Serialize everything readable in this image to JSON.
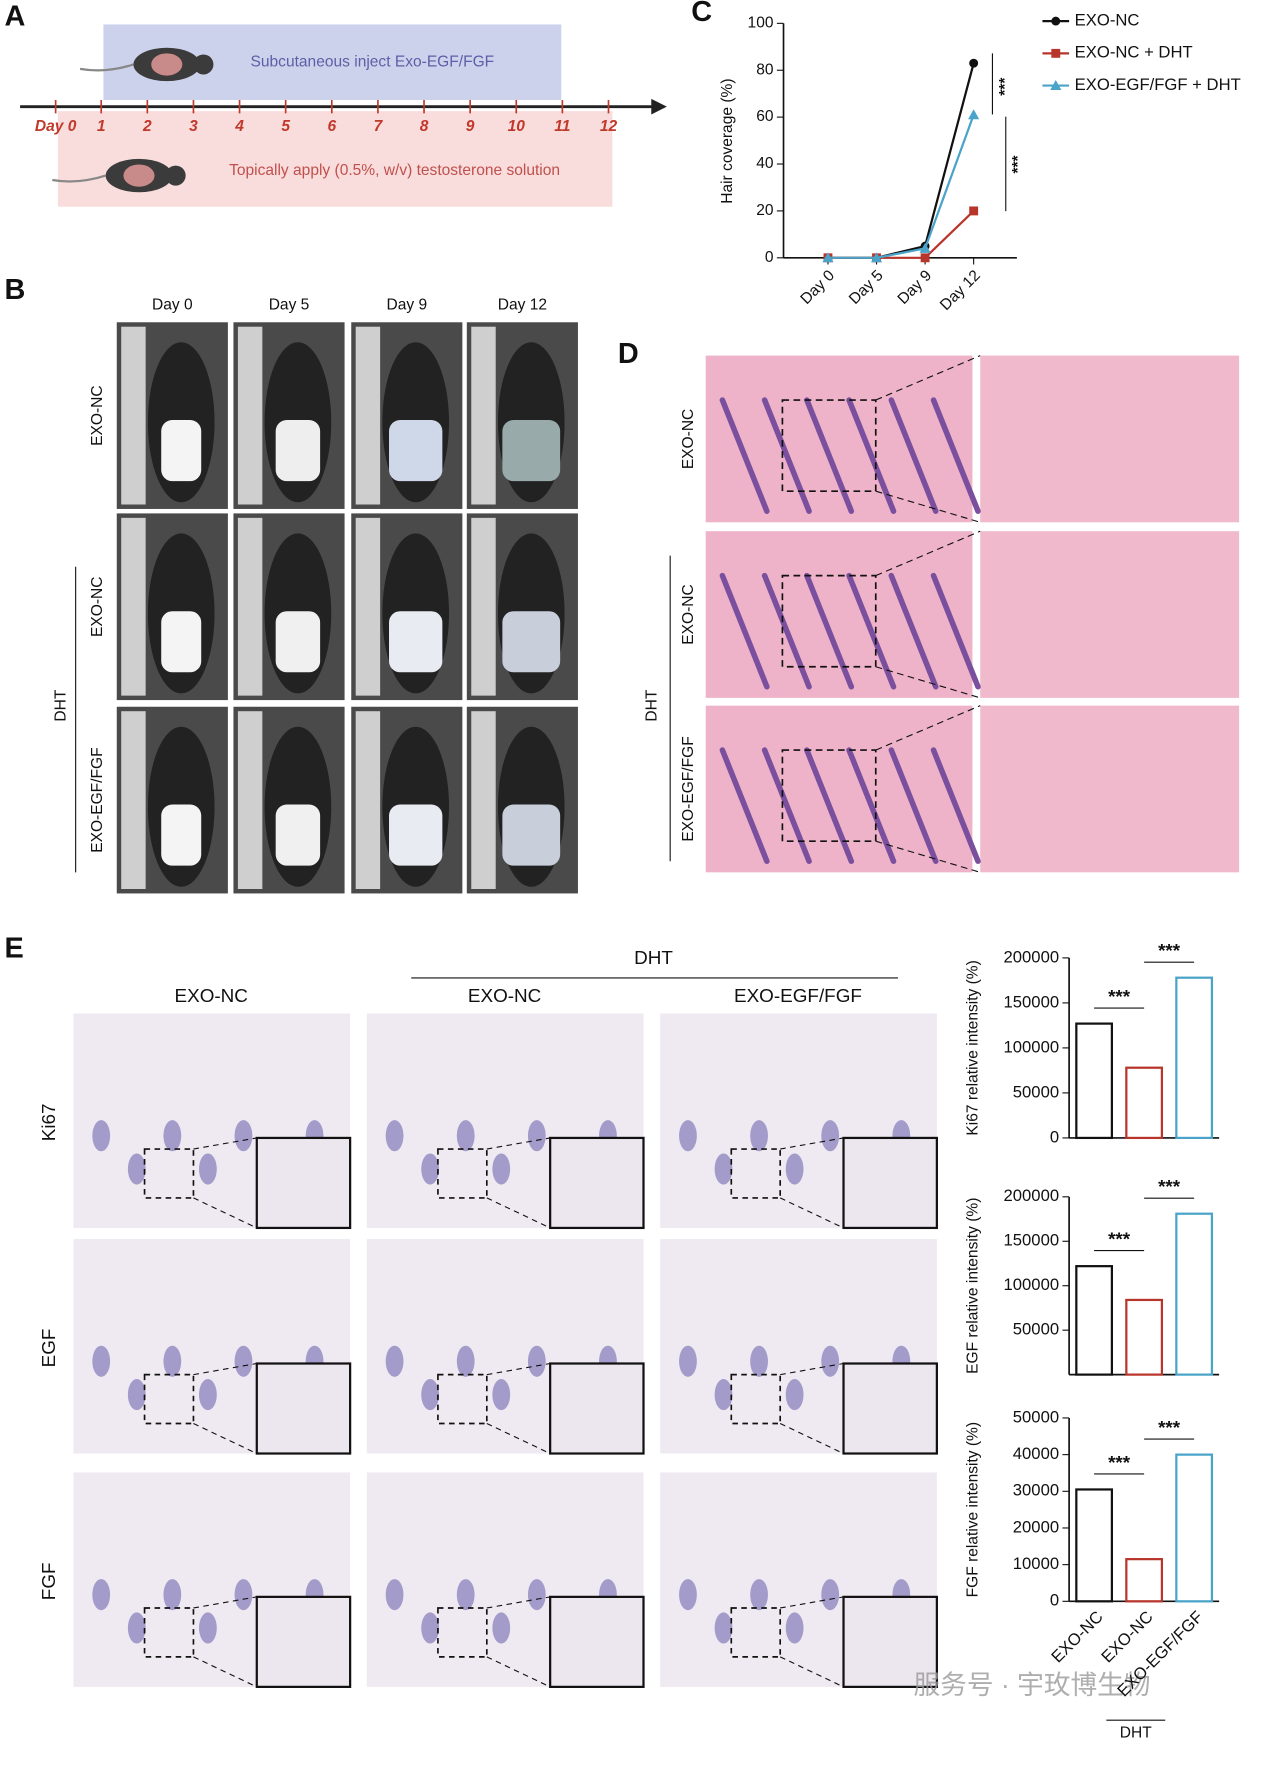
{
  "panel_a": {
    "label": "A",
    "top_text": "Subcutaneous inject Exo-EGF/FGF",
    "bottom_text": "Topically apply (0.5%, w/v) testosterone solution",
    "timeline": [
      "Day 0",
      "1",
      "2",
      "3",
      "4",
      "5",
      "6",
      "7",
      "8",
      "9",
      "10",
      "11",
      "12"
    ]
  },
  "panel_b": {
    "label": "B",
    "columns": [
      "Day 0",
      "Day 5",
      "Day 9",
      "Day 12"
    ],
    "rows": [
      "EXO-NC",
      "EXO-NC",
      "EXO-EGF/FGF"
    ],
    "group": "DHT"
  },
  "panel_d": {
    "label": "D",
    "rows": [
      "EXO-NC",
      "EXO-NC",
      "EXO-EGF/FGF"
    ],
    "group": "DHT"
  },
  "panel_e": {
    "label": "E",
    "columns": [
      "EXO-NC",
      "EXO-NC",
      "EXO-EGF/FGF"
    ],
    "group": "DHT",
    "rows": [
      "Ki67",
      "EGF",
      "FGF"
    ]
  },
  "watermark": "服务号 · 宇玫博生物",
  "chart_data": [
    {
      "type": "line",
      "label": "C",
      "categories": [
        "Day 0",
        "Day 5",
        "Day 9",
        "Day 12"
      ],
      "series": [
        {
          "name": "EXO-NC",
          "color": "#111111",
          "marker": "circle",
          "values": [
            0,
            0,
            5,
            83
          ]
        },
        {
          "name": "EXO-NC + DHT",
          "color": "#b8352b",
          "marker": "square",
          "values": [
            0,
            0,
            0,
            20
          ]
        },
        {
          "name": "EXO-EGF/FGF + DHT",
          "color": "#4aa3c8",
          "marker": "triangle",
          "values": [
            0,
            0,
            4,
            61
          ]
        }
      ],
      "ylim": [
        0,
        100
      ],
      "yticks": [
        0,
        20,
        40,
        60,
        80,
        100
      ],
      "y_label": "Hair coverage (%)",
      "annotations": [
        "***",
        "***"
      ]
    },
    {
      "type": "bar",
      "y_label": "Ki67 relative intensity (%)",
      "values": [
        127000,
        78000,
        178000
      ],
      "colors": [
        "#111111",
        "#b8352b",
        "#4aa3c8"
      ],
      "ylim": [
        0,
        200000
      ],
      "yticks": [
        0,
        50000,
        100000,
        150000,
        200000
      ],
      "annotations": [
        "***",
        "***"
      ]
    },
    {
      "type": "bar",
      "y_label": "EGF relative intensity (%)",
      "values": [
        122000,
        84000,
        181000
      ],
      "colors": [
        "#111111",
        "#b8352b",
        "#4aa3c8"
      ],
      "ylim": [
        0,
        200000
      ],
      "yticks": [
        50000,
        100000,
        150000,
        200000
      ],
      "annotations": [
        "***",
        "***"
      ]
    },
    {
      "type": "bar",
      "y_label": "FGF relative intensity (%)",
      "values": [
        30500,
        11500,
        40000
      ],
      "colors": [
        "#111111",
        "#b8352b",
        "#4aa3c8"
      ],
      "ylim": [
        0,
        50000
      ],
      "yticks": [
        0,
        10000,
        20000,
        30000,
        40000,
        50000
      ],
      "annotations": [
        "***",
        "***"
      ],
      "categories": [
        "EXO-NC",
        "EXO-NC",
        "EXO-EGF/FGF"
      ],
      "group_label": "DHT"
    }
  ]
}
